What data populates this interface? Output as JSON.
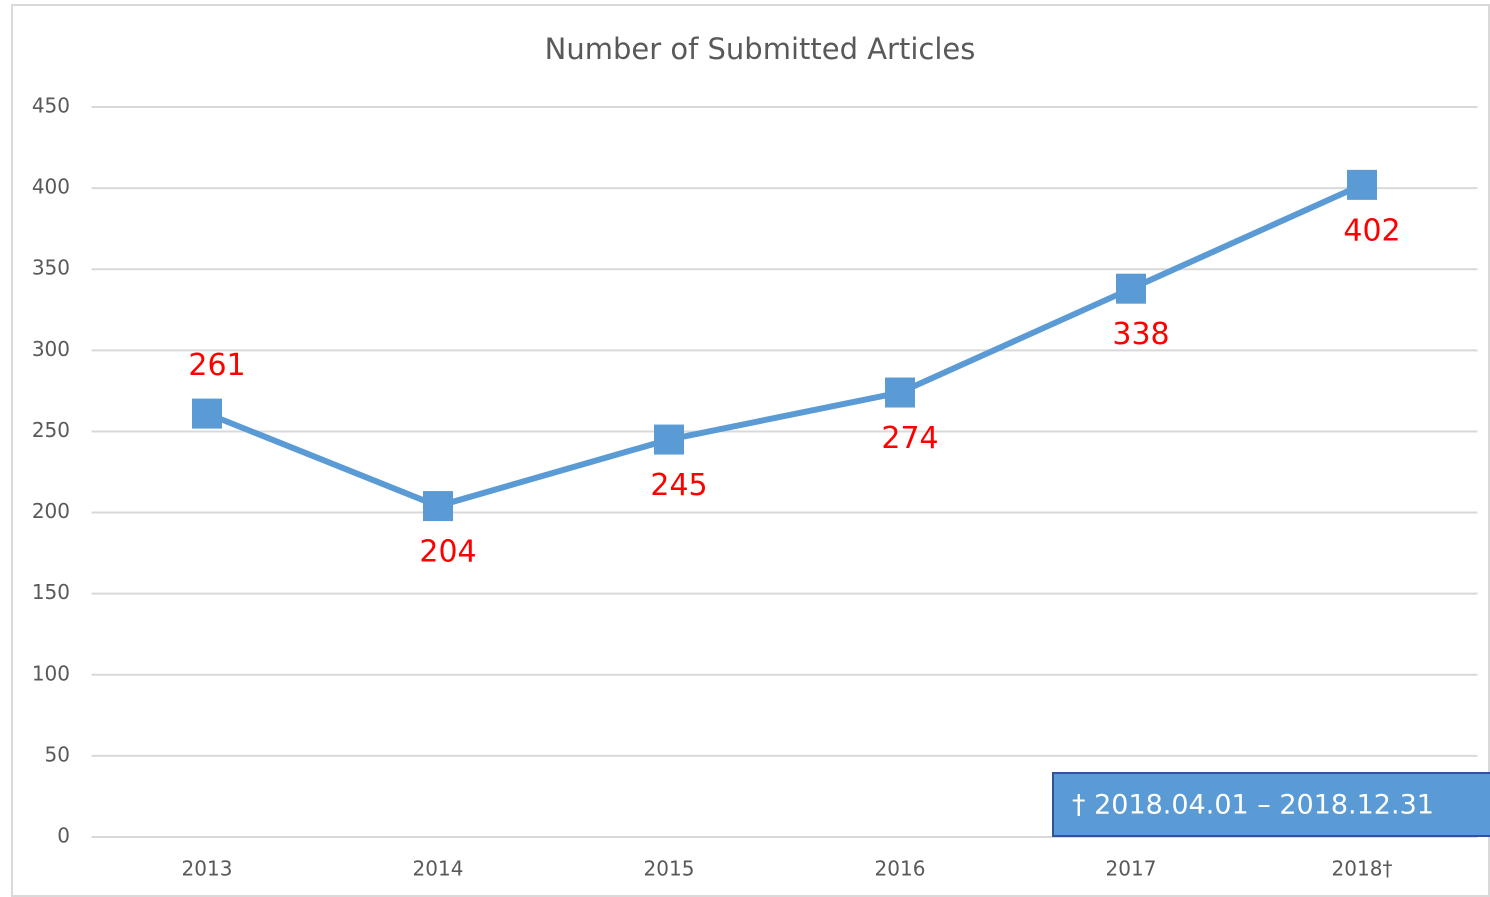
{
  "chart_data": {
    "type": "line",
    "title": "Number of Submitted Articles",
    "categories": [
      "2013",
      "2014",
      "2015",
      "2016",
      "2017",
      "2018†"
    ],
    "values": [
      261,
      204,
      245,
      274,
      338,
      402
    ],
    "color": "#5b9bd5",
    "ylim": [
      0,
      450
    ],
    "yticks": [
      0,
      50,
      100,
      150,
      200,
      250,
      300,
      350,
      400,
      450
    ],
    "grid": true,
    "annotation": "† 2018.04.01 – 2018.12.31"
  }
}
